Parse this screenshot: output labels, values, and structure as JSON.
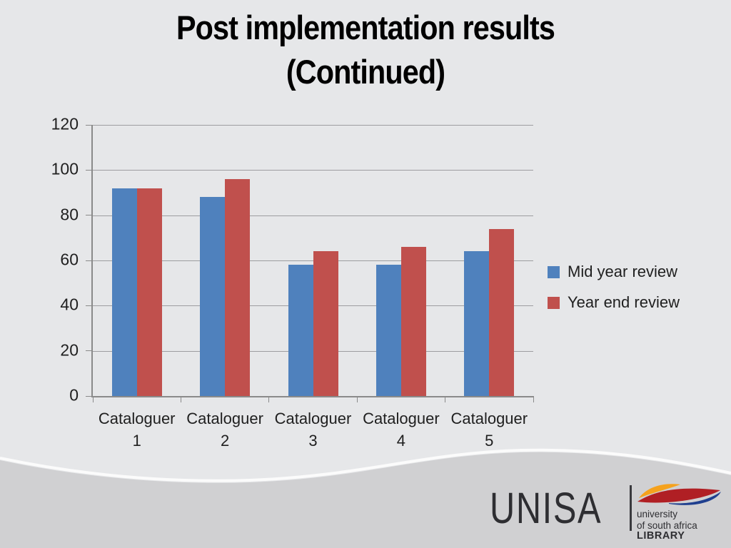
{
  "title": {
    "line1": "Post implementation results",
    "line2": "(Continued)"
  },
  "chart_data": {
    "type": "bar",
    "categories": [
      "Cataloguer 1",
      "Cataloguer 2",
      "Cataloguer 3",
      "Cataloguer 4",
      "Cataloguer 5"
    ],
    "series": [
      {
        "name": "Mid year review",
        "color": "#4f81bd",
        "values": [
          92,
          88,
          58,
          58,
          64
        ]
      },
      {
        "name": "Year end review",
        "color": "#c0504d",
        "values": [
          92,
          96,
          64,
          66,
          74
        ]
      }
    ],
    "title": "",
    "xlabel": "",
    "ylabel": "",
    "ylim": [
      0,
      120
    ],
    "yticks": [
      0,
      20,
      40,
      60,
      80,
      100,
      120
    ],
    "grid": true,
    "legend_position": "right"
  },
  "footer": {
    "logo_text": "UNISA",
    "logo_sub1": "university",
    "logo_sub2": "of south africa",
    "logo_sub3": "LIBRARY"
  },
  "colors": {
    "background": "#e6e7e9",
    "band": "#d0d0d2",
    "wave-stroke": "#fbfbfb",
    "gridline": "#9d9da0",
    "axis": "#8a8a8a",
    "text": "#1f1f1f",
    "series-blue": "#4f81bd",
    "series-red": "#c0504d"
  }
}
